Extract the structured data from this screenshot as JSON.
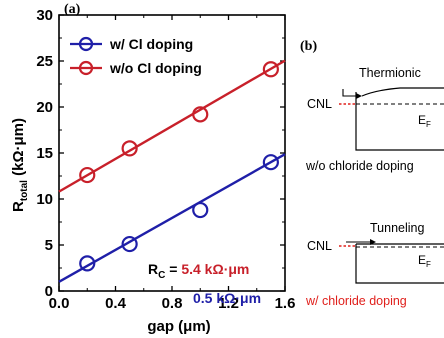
{
  "panel_a_label": "(a)",
  "panel_b_label": "(b)",
  "chart_data": {
    "type": "scatter",
    "title": "",
    "xlabel": "gap (μm)",
    "ylabel_main": "R",
    "ylabel_sub": "total",
    "ylabel_unit": " (kΩ·μm)",
    "xlim": [
      0.0,
      1.6
    ],
    "ylim": [
      0,
      30
    ],
    "xticks": [
      "0.0",
      "0.4",
      "0.8",
      "1.2",
      "1.6"
    ],
    "yticks": [
      "0",
      "5",
      "10",
      "15",
      "20",
      "25",
      "30"
    ],
    "grid": false,
    "legend_position": "top-left",
    "series": [
      {
        "name": "w/ Cl doping",
        "color": "#1f1fa8",
        "x": [
          0.2,
          0.5,
          1.0,
          1.5
        ],
        "y": [
          3.0,
          5.1,
          8.8,
          14.0
        ],
        "fit_intercept": 1.0,
        "fit_slope": 8.67
      },
      {
        "name": "w/o Cl doping",
        "color": "#c8202a",
        "x": [
          0.2,
          0.5,
          1.0,
          1.5
        ],
        "y": [
          12.6,
          15.5,
          19.2,
          24.1
        ],
        "fit_intercept": 10.8,
        "fit_slope": 8.9
      }
    ],
    "annotations": {
      "rc_label_main": "R",
      "rc_label_sub": "C",
      "rc_equals": " = ",
      "rc_red_value": "5.4 kΩ·μm",
      "rc_blue_value": "0.5 kΩ·μm"
    }
  },
  "diagram": {
    "top_label": "Thermionic",
    "cnl_top": "CNL",
    "ef_top_main": "E",
    "ef_top_sub": "F",
    "top_caption": "w/o chloride doping",
    "bottom_label": "Tunneling",
    "cnl_bottom": "CNL",
    "ef_bottom_main": "E",
    "ef_bottom_sub": "F",
    "bottom_caption": "w/ chloride doping",
    "caption_red": "#e0201c"
  }
}
